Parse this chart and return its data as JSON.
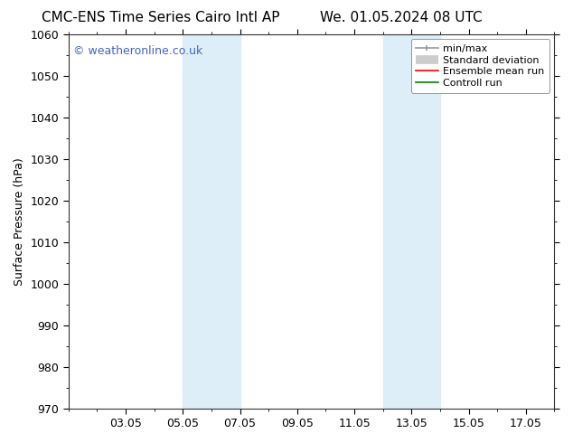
{
  "title_left": "CMC-ENS Time Series Cairo Intl AP",
  "title_right": "We. 01.05.2024 08 UTC",
  "ylabel": "Surface Pressure (hPa)",
  "ylim": [
    970,
    1060
  ],
  "yticks": [
    970,
    980,
    990,
    1000,
    1010,
    1020,
    1030,
    1040,
    1050,
    1060
  ],
  "xlim": [
    0,
    17
  ],
  "xtick_labels": [
    "03.05",
    "05.05",
    "07.05",
    "09.05",
    "11.05",
    "13.05",
    "15.05",
    "17.05"
  ],
  "xtick_positions": [
    2,
    4,
    6,
    8,
    10,
    12,
    14,
    16
  ],
  "shaded_regions": [
    {
      "x_start": 4,
      "x_end": 6,
      "color": "#ddeef8"
    },
    {
      "x_start": 11,
      "x_end": 13,
      "color": "#ddeef8"
    }
  ],
  "watermark_text": "© weatheronline.co.uk",
  "watermark_color": "#4466bb",
  "watermark_fontsize": 9,
  "legend_entries": [
    {
      "label": "min/max",
      "color": "#999999",
      "linewidth": 1.2
    },
    {
      "label": "Standard deviation",
      "color": "#cccccc",
      "linewidth": 7
    },
    {
      "label": "Ensemble mean run",
      "color": "red",
      "linewidth": 1.2
    },
    {
      "label": "Controll run",
      "color": "green",
      "linewidth": 1.2
    }
  ],
  "bg_color": "#ffffff",
  "title_fontsize": 11,
  "axis_fontsize": 9,
  "tick_fontsize": 9,
  "legend_fontsize": 8
}
